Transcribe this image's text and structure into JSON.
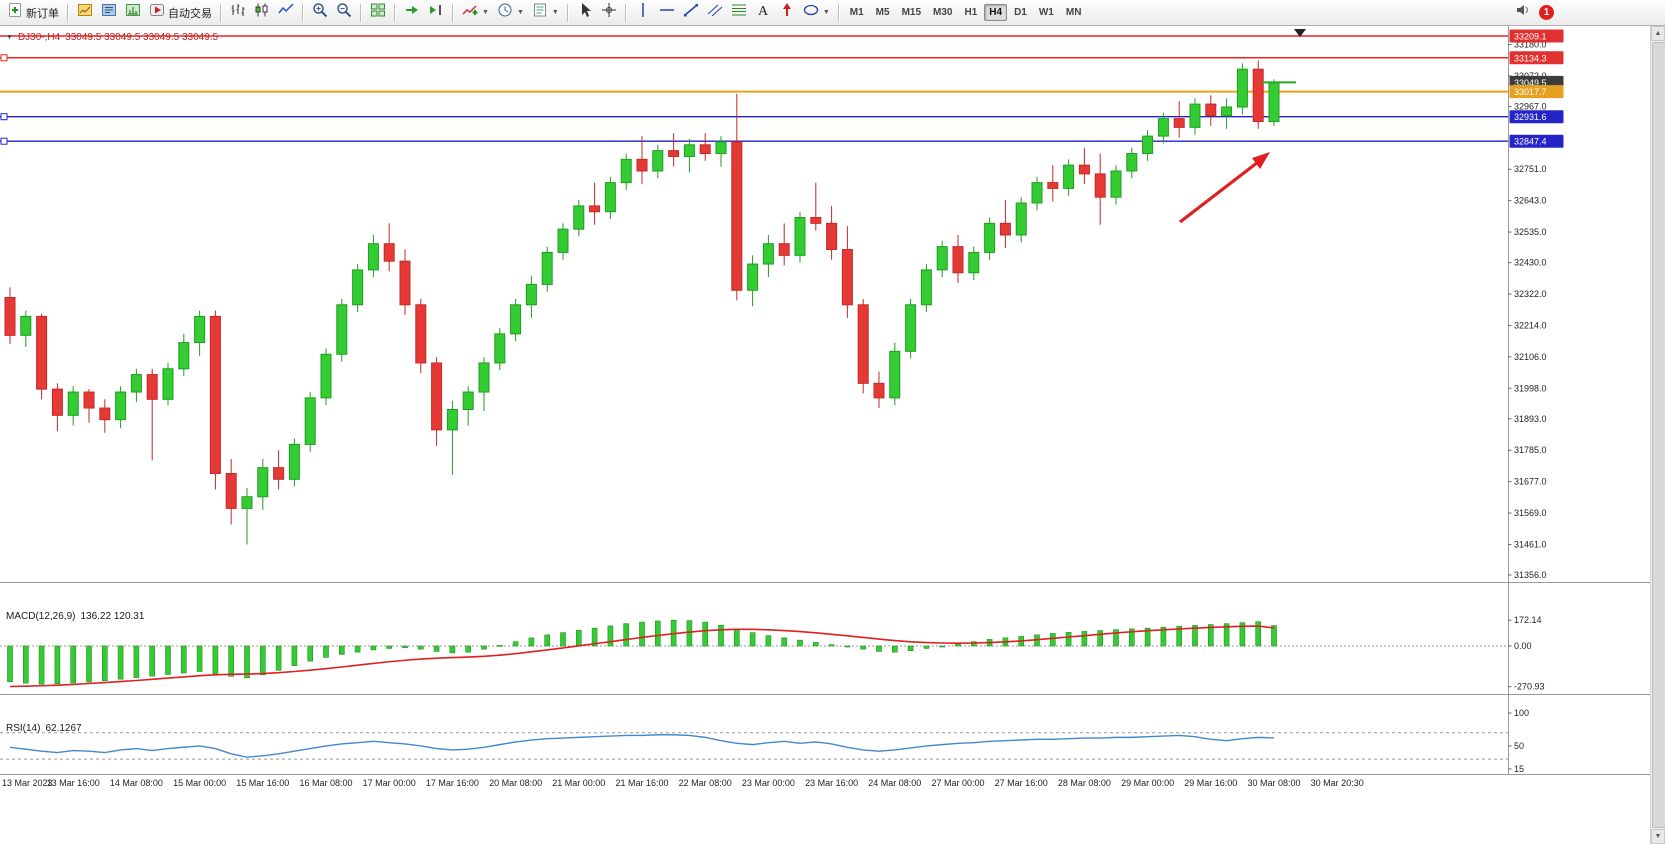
{
  "toolbar": {
    "new_order_label": "新订单",
    "auto_trading_label": "自动交易",
    "groups": [
      {
        "items": [
          {
            "icon": "new-order",
            "label_key": "new_order_label"
          }
        ]
      },
      {
        "items": [
          {
            "icon": "market-watch"
          },
          {
            "icon": "navigator"
          },
          {
            "icon": "terminal"
          },
          {
            "icon": "auto-trading",
            "label_key": "auto_trading_label"
          }
        ]
      },
      {
        "items": [
          {
            "icon": "chart-bars"
          },
          {
            "icon": "chart-candles"
          },
          {
            "icon": "chart-line"
          }
        ]
      },
      {
        "items": [
          {
            "icon": "zoom-in"
          },
          {
            "icon": "zoom-out"
          }
        ]
      },
      {
        "items": [
          {
            "icon": "tile-windows"
          }
        ]
      },
      {
        "items": [
          {
            "icon": "auto-scroll"
          },
          {
            "icon": "chart-shift"
          }
        ]
      },
      {
        "items": [
          {
            "icon": "add-indicator",
            "dropdown": true
          },
          {
            "icon": "periods",
            "dropdown": true
          },
          {
            "icon": "templates",
            "dropdown": true
          }
        ]
      },
      {
        "items": [
          {
            "icon": "cursor"
          },
          {
            "icon": "crosshair"
          }
        ]
      },
      {
        "items": [
          {
            "icon": "vertical-line"
          },
          {
            "icon": "horizontal-line"
          },
          {
            "icon": "trendline"
          },
          {
            "icon": "channel"
          },
          {
            "icon": "fibonacci"
          },
          {
            "icon": "text-tool"
          },
          {
            "icon": "arrows-tool"
          },
          {
            "icon": "shapes",
            "dropdown": true
          }
        ]
      }
    ],
    "timeframes": [
      {
        "label": "M1",
        "active": false
      },
      {
        "label": "M5",
        "active": false
      },
      {
        "label": "M15",
        "active": false
      },
      {
        "label": "M30",
        "active": false
      },
      {
        "label": "H1",
        "active": false
      },
      {
        "label": "H4",
        "active": true
      },
      {
        "label": "D1",
        "active": false
      },
      {
        "label": "W1",
        "active": false
      },
      {
        "label": "MN",
        "active": false
      }
    ],
    "notification_badge": "1"
  },
  "chart": {
    "title_symbol": "DJ30-,H4",
    "title_ohlc": "33049.5 33049.5 33049.5 33049.5",
    "macd_label": "MACD(12,26,9)",
    "macd_values": "136.22 120.31",
    "rsi_label": "RSI(14)",
    "rsi_value": "62.1267"
  },
  "chart_data": {
    "type": "candlestick",
    "symbol": "DJ30-",
    "timeframe": "H4",
    "current_price": 33049.5,
    "ylim": [
      31356.0,
      33209.1
    ],
    "colors": {
      "up": "#33cc33",
      "up_stroke": "#1f9e1f",
      "down": "#e53935",
      "down_stroke": "#c62828",
      "red_line": "#ee2222",
      "orange_line": "#eea018",
      "blue_line": "#2222cc",
      "macd_bar": "#33cc33",
      "macd_signal": "#e02020",
      "rsi_line": "#4488cc",
      "current_box": "#3c3c3c",
      "arrow": "#e02020"
    },
    "horizontal_lines": [
      {
        "price": 33209.1,
        "color": "#ee2222",
        "width": 1.4,
        "handle": false
      },
      {
        "price": 33134.3,
        "color": "#ee2222",
        "width": 1.4,
        "handle": true
      },
      {
        "price": 33017.7,
        "color": "#eea018",
        "width": 2.0,
        "handle": false
      },
      {
        "price": 32931.6,
        "color": "#2222cc",
        "width": 1.4,
        "handle": true
      },
      {
        "price": 32847.4,
        "color": "#2222cc",
        "width": 1.4,
        "handle": true
      }
    ],
    "axis_plain_labels": [
      "33180.0",
      "33072.0",
      "32967.0",
      "32751.0",
      "32643.0",
      "32535.0",
      "32430.0",
      "32322.0",
      "32214.0",
      "32106.0",
      "31998.0",
      "31893.0",
      "31785.0",
      "31677.0",
      "31569.0",
      "31461.0",
      "31356.0"
    ],
    "axis_boxed_labels": [
      {
        "price": 33209.1,
        "text": "33209.1",
        "bg": "#e03030"
      },
      {
        "price": 33134.3,
        "text": "33134.3",
        "bg": "#e03030"
      },
      {
        "price": 33049.5,
        "text": "33049.5",
        "bg": "#3c3c3c"
      },
      {
        "price": 33017.7,
        "text": "33017.7",
        "bg": "#e8a020"
      },
      {
        "price": 32931.6,
        "text": "32931.6",
        "bg": "#2424c8"
      },
      {
        "price": 32847.4,
        "text": "32847.4",
        "bg": "#2424c8"
      }
    ],
    "time_labels": [
      "13 Mar 2023",
      "13 Mar 16:00",
      "14 Mar 08:00",
      "15 Mar 00:00",
      "15 Mar 16:00",
      "16 Mar 08:00",
      "17 Mar 00:00",
      "17 Mar 16:00",
      "20 Mar 08:00",
      "21 Mar 00:00",
      "21 Mar 16:00",
      "22 Mar 08:00",
      "23 Mar 00:00",
      "23 Mar 16:00",
      "24 Mar 08:00",
      "27 Mar 00:00",
      "27 Mar 16:00",
      "28 Mar 08:00",
      "29 Mar 00:00",
      "29 Mar 16:00",
      "30 Mar 08:00",
      "30 Mar 20:30"
    ],
    "candles": [
      [
        32310,
        32345,
        32150,
        32180
      ],
      [
        32180,
        32265,
        32140,
        32245
      ],
      [
        32245,
        32255,
        31960,
        31995
      ],
      [
        31995,
        32015,
        31850,
        31905
      ],
      [
        31905,
        32005,
        31870,
        31985
      ],
      [
        31985,
        31995,
        31880,
        31930
      ],
      [
        31930,
        31960,
        31845,
        31890
      ],
      [
        31890,
        32005,
        31860,
        31985
      ],
      [
        31985,
        32065,
        31950,
        32045
      ],
      [
        32045,
        32065,
        31750,
        31960
      ],
      [
        31960,
        32085,
        31940,
        32065
      ],
      [
        32065,
        32185,
        32040,
        32155
      ],
      [
        32155,
        32265,
        32110,
        32245
      ],
      [
        32245,
        32265,
        31650,
        31705
      ],
      [
        31705,
        31755,
        31530,
        31585
      ],
      [
        31585,
        31655,
        31461,
        31625
      ],
      [
        31625,
        31755,
        31580,
        31725
      ],
      [
        31725,
        31785,
        31650,
        31685
      ],
      [
        31685,
        31825,
        31660,
        31805
      ],
      [
        31805,
        31985,
        31780,
        31965
      ],
      [
        31965,
        32135,
        31940,
        32115
      ],
      [
        32115,
        32305,
        32090,
        32285
      ],
      [
        32285,
        32425,
        32260,
        32405
      ],
      [
        32405,
        32525,
        32380,
        32495
      ],
      [
        32495,
        32565,
        32400,
        32435
      ],
      [
        32435,
        32475,
        32250,
        32285
      ],
      [
        32285,
        32305,
        32050,
        32085
      ],
      [
        32085,
        32105,
        31800,
        31855
      ],
      [
        31855,
        31955,
        31700,
        31925
      ],
      [
        31925,
        32005,
        31870,
        31985
      ],
      [
        31985,
        32105,
        31920,
        32085
      ],
      [
        32085,
        32205,
        32060,
        32185
      ],
      [
        32185,
        32305,
        32160,
        32285
      ],
      [
        32285,
        32385,
        32240,
        32355
      ],
      [
        32355,
        32485,
        32330,
        32465
      ],
      [
        32465,
        32565,
        32440,
        32545
      ],
      [
        32545,
        32645,
        32520,
        32625
      ],
      [
        32625,
        32705,
        32560,
        32605
      ],
      [
        32605,
        32725,
        32580,
        32705
      ],
      [
        32705,
        32805,
        32680,
        32785
      ],
      [
        32785,
        32865,
        32700,
        32745
      ],
      [
        32745,
        32835,
        32720,
        32815
      ],
      [
        32815,
        32875,
        32760,
        32795
      ],
      [
        32795,
        32855,
        32740,
        32835
      ],
      [
        32835,
        32875,
        32780,
        32805
      ],
      [
        32805,
        32865,
        32760,
        32845
      ],
      [
        32845,
        33010,
        32300,
        32335
      ],
      [
        32335,
        32455,
        32280,
        32425
      ],
      [
        32425,
        32525,
        32380,
        32495
      ],
      [
        32495,
        32565,
        32420,
        32455
      ],
      [
        32455,
        32605,
        32430,
        32585
      ],
      [
        32585,
        32705,
        32540,
        32565
      ],
      [
        32565,
        32625,
        32440,
        32475
      ],
      [
        32475,
        32555,
        32240,
        32285
      ],
      [
        32285,
        32305,
        31980,
        32015
      ],
      [
        32015,
        32055,
        31930,
        31965
      ],
      [
        31965,
        32155,
        31940,
        32125
      ],
      [
        32125,
        32305,
        32100,
        32285
      ],
      [
        32285,
        32425,
        32260,
        32405
      ],
      [
        32405,
        32505,
        32380,
        32485
      ],
      [
        32485,
        32525,
        32360,
        32395
      ],
      [
        32395,
        32485,
        32370,
        32465
      ],
      [
        32465,
        32585,
        32440,
        32565
      ],
      [
        32565,
        32645,
        32480,
        32525
      ],
      [
        32525,
        32655,
        32500,
        32635
      ],
      [
        32635,
        32725,
        32610,
        32705
      ],
      [
        32705,
        32765,
        32640,
        32685
      ],
      [
        32685,
        32785,
        32660,
        32765
      ],
      [
        32765,
        32825,
        32700,
        32735
      ],
      [
        32735,
        32805,
        32560,
        32655
      ],
      [
        32655,
        32765,
        32630,
        32745
      ],
      [
        32745,
        32825,
        32720,
        32805
      ],
      [
        32805,
        32885,
        32780,
        32865
      ],
      [
        32865,
        32945,
        32840,
        32925
      ],
      [
        32925,
        32985,
        32860,
        32895
      ],
      [
        32895,
        32995,
        32870,
        32975
      ],
      [
        32975,
        33005,
        32900,
        32935
      ],
      [
        32935,
        32995,
        32890,
        32965
      ],
      [
        32965,
        33115,
        32940,
        33095
      ],
      [
        33095,
        33125,
        32890,
        32915
      ],
      [
        32915,
        33060,
        32900,
        33049.5
      ]
    ],
    "macd": {
      "label": "MACD(12,26,9)",
      "current_values": [
        136.22,
        120.31
      ],
      "axis": [
        "172.14",
        "0.00",
        "-270.93"
      ],
      "histogram": [
        -238,
        -248,
        -255,
        -252,
        -246,
        -240,
        -231,
        -221,
        -211,
        -201,
        -190,
        -180,
        -170,
        -186,
        -202,
        -212,
        -192,
        -162,
        -131,
        -101,
        -76,
        -56,
        -41,
        -26,
        -16,
        -11,
        -21,
        -36,
        -46,
        -41,
        -21,
        4,
        29,
        54,
        74,
        89,
        104,
        119,
        134,
        149,
        159,
        167,
        172,
        169,
        159,
        139,
        114,
        89,
        69,
        54,
        39,
        24,
        9,
        -6,
        -21,
        -36,
        -41,
        -31,
        -16,
        -1,
        14,
        29,
        44,
        54,
        64,
        74,
        84,
        91,
        97,
        103,
        109,
        114,
        119,
        125,
        131,
        137,
        143,
        149,
        155,
        162,
        136.22
      ],
      "signal": [
        -270,
        -268,
        -265,
        -261,
        -256,
        -250,
        -244,
        -237,
        -230,
        -222,
        -214,
        -206,
        -198,
        -192,
        -189,
        -187,
        -184,
        -178,
        -170,
        -161,
        -151,
        -140,
        -128,
        -116,
        -105,
        -95,
        -87,
        -81,
        -77,
        -74,
        -69,
        -61,
        -51,
        -39,
        -26,
        -13,
        1,
        15,
        29,
        43,
        57,
        70,
        82,
        93,
        102,
        108,
        111,
        111,
        108,
        103,
        96,
        88,
        78,
        68,
        57,
        46,
        36,
        28,
        23,
        20,
        19,
        20,
        23,
        28,
        34,
        42,
        51,
        60,
        69,
        78,
        87,
        95,
        102,
        108,
        114,
        119,
        124,
        128,
        131,
        133,
        120.31
      ]
    },
    "rsi": {
      "label": "RSI(14)",
      "current_value": 62.1267,
      "axis": [
        "100",
        "50",
        "15"
      ],
      "levels": [
        70,
        30
      ],
      "values": [
        48,
        45,
        42,
        40,
        43,
        42,
        40,
        44,
        46,
        43,
        46,
        48,
        50,
        46,
        38,
        33,
        35,
        38,
        42,
        46,
        50,
        53,
        55,
        57,
        55,
        53,
        50,
        46,
        44,
        45,
        48,
        52,
        56,
        59,
        61,
        62,
        63,
        64,
        65,
        66,
        66,
        67,
        67,
        66,
        63,
        58,
        54,
        52,
        55,
        57,
        54,
        56,
        53,
        48,
        44,
        42,
        44,
        47,
        50,
        52,
        54,
        55,
        57,
        58,
        59,
        60,
        60,
        61,
        62,
        62,
        63,
        63,
        64,
        65,
        66,
        64,
        60,
        58,
        61,
        63,
        62.1267
      ]
    },
    "annotations": [
      {
        "type": "arrow",
        "color": "#e02020",
        "direction": "up-right"
      }
    ]
  }
}
